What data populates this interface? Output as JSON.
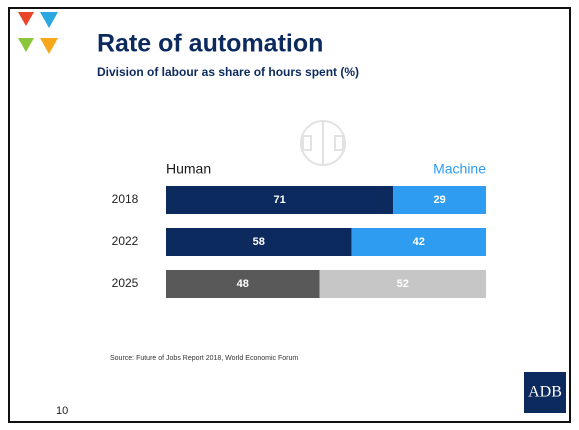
{
  "chart_data": {
    "type": "bar",
    "orientation": "horizontal",
    "stacked": true,
    "title": "Rate of automation",
    "subtitle": "Division of labour as share of hours spent (%)",
    "categories": [
      "2018",
      "2022",
      "2025"
    ],
    "series": [
      {
        "name": "Human",
        "color": "#0c2a5e",
        "colors": [
          "#0c2a5e",
          "#0c2a5e",
          "#595959"
        ],
        "label_color": "#1a1a1a",
        "values": [
          71,
          58,
          48
        ]
      },
      {
        "name": "Machine",
        "color": "#2e9cf0",
        "colors": [
          "#2e9cf0",
          "#2e9cf0",
          "#c6c6c6"
        ],
        "label_color": "#2e9cf0",
        "values": [
          29,
          42,
          52
        ]
      }
    ],
    "source": "Source: Future of Jobs Report 2018, World Economic Forum",
    "page_number": "10",
    "logo": "ADB"
  }
}
